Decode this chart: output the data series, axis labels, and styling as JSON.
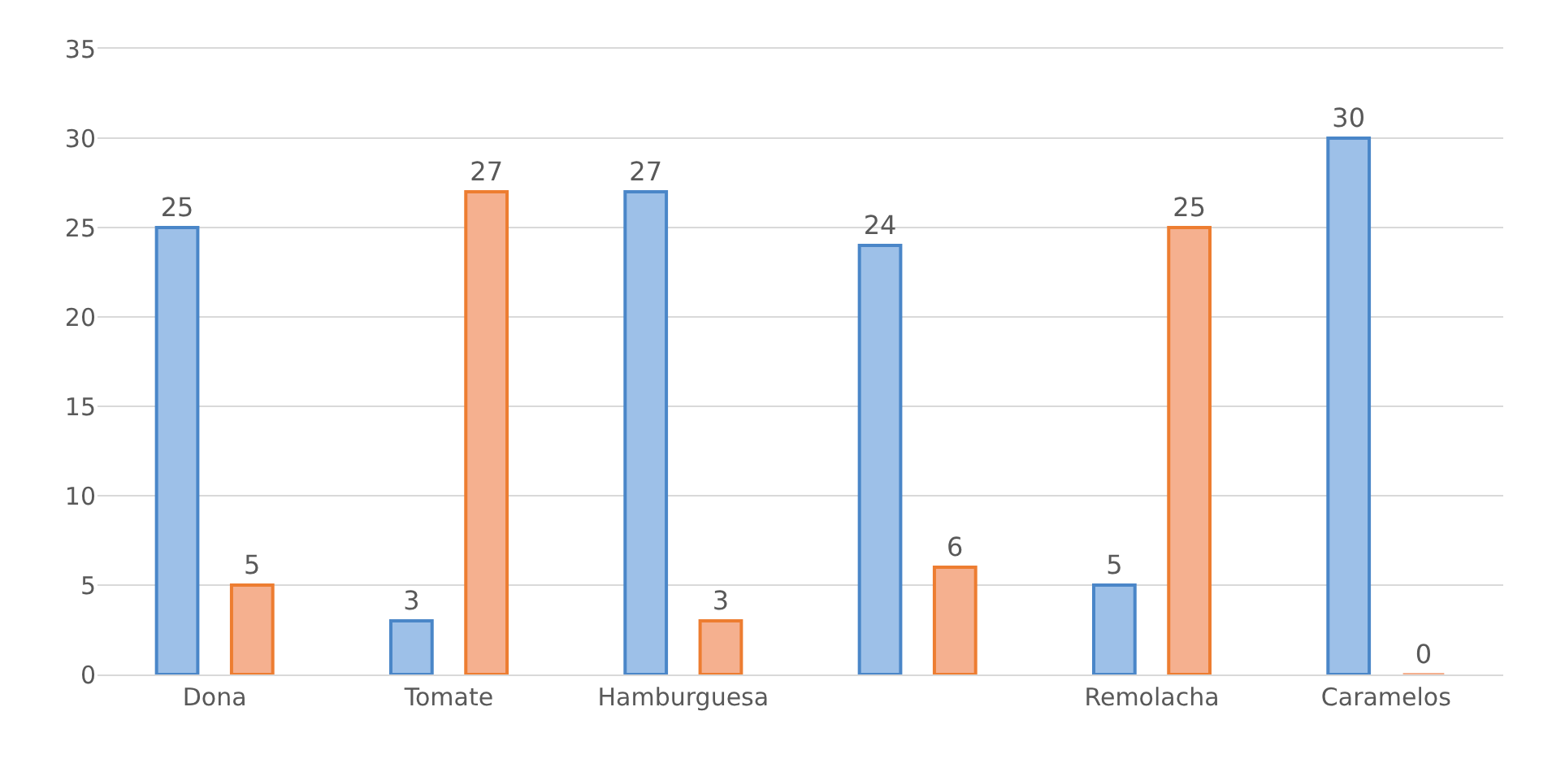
{
  "chart_data": {
    "type": "bar",
    "categories": [
      "Dona",
      "Tomate",
      "Hamburguesa",
      null,
      "Remolacha",
      "Caramelos"
    ],
    "series": [
      {
        "color": "#9dc0e8",
        "values": [
          25,
          3,
          27,
          24,
          5,
          30
        ]
      },
      {
        "color": "#f5b08f",
        "values": [
          5,
          27,
          3,
          6,
          25,
          0
        ]
      }
    ],
    "ylim": [
      0,
      35
    ],
    "yticks": [
      0,
      5,
      10,
      15,
      20,
      25,
      30,
      35
    ],
    "grid": "y",
    "legend": false,
    "data_labels": true
  }
}
